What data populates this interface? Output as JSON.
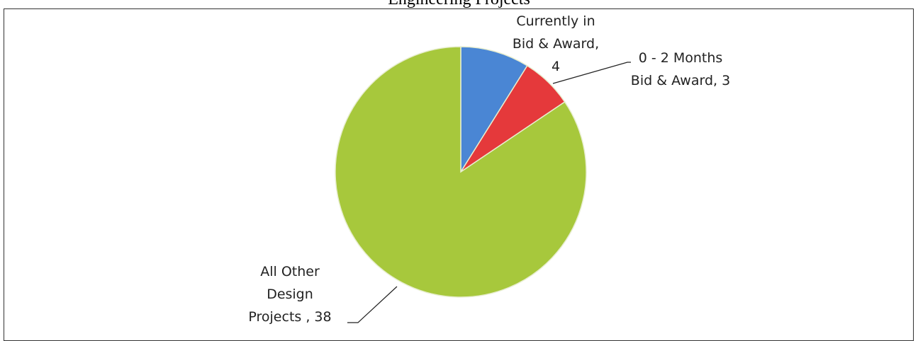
{
  "chart_data": {
    "type": "pie",
    "title": "Engineering Projects",
    "values": [
      4,
      3,
      38
    ],
    "value_labels": [
      "Currently in Bid & Award, 4",
      "0 - 2 Months Bid & Award, 3",
      "All Other Design Projects , 38"
    ],
    "colors": [
      "#4a86d4",
      "#e5393b",
      "#a7c83c"
    ]
  }
}
